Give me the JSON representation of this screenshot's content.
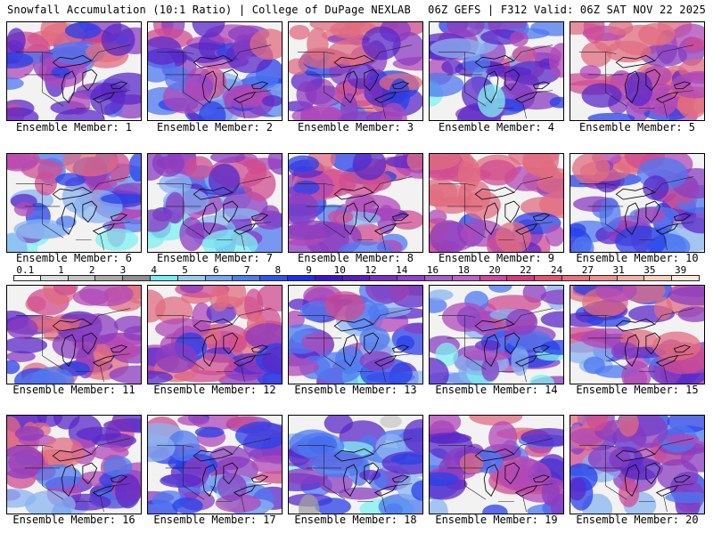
{
  "header": {
    "left": "Snowfall Accumulation (10:1 Ratio) | College of DuPage NEXLAB",
    "right": "06Z GEFS | F312 Valid: 06Z SAT NOV 22 2025"
  },
  "members": [
    {
      "label": "Ensemble Member: 1",
      "intensity": 0.55
    },
    {
      "label": "Ensemble Member: 2",
      "intensity": 0.5
    },
    {
      "label": "Ensemble Member: 3",
      "intensity": 0.7
    },
    {
      "label": "Ensemble Member: 4",
      "intensity": 0.4
    },
    {
      "label": "Ensemble Member: 5",
      "intensity": 0.85
    },
    {
      "label": "Ensemble Member: 6",
      "intensity": 0.45
    },
    {
      "label": "Ensemble Member: 7",
      "intensity": 0.45
    },
    {
      "label": "Ensemble Member: 8",
      "intensity": 0.55
    },
    {
      "label": "Ensemble Member: 9",
      "intensity": 0.8
    },
    {
      "label": "Ensemble Member: 10",
      "intensity": 0.55
    },
    {
      "label": "Ensemble Member: 11",
      "intensity": 0.8
    },
    {
      "label": "Ensemble Member: 12",
      "intensity": 0.8
    },
    {
      "label": "Ensemble Member: 13",
      "intensity": 0.45
    },
    {
      "label": "Ensemble Member: 14",
      "intensity": 0.45
    },
    {
      "label": "Ensemble Member: 15",
      "intensity": 0.6
    },
    {
      "label": "Ensemble Member: 16",
      "intensity": 0.6
    },
    {
      "label": "Ensemble Member: 17",
      "intensity": 0.45
    },
    {
      "label": "Ensemble Member: 18",
      "intensity": 0.25
    },
    {
      "label": "Ensemble Member: 19",
      "intensity": 0.55
    },
    {
      "label": "Ensemble Member: 20",
      "intensity": 0.55
    }
  ],
  "colorbar": {
    "labels": [
      "0.1",
      "1",
      "2",
      "3",
      "4",
      "5",
      "6",
      "7",
      "8",
      "9",
      "10",
      "12",
      "14",
      "16",
      "18",
      "20",
      "22",
      "24",
      "27",
      "31",
      "35",
      "39"
    ],
    "colors": [
      "#ffffff",
      "#dcdcdc",
      "#c4c4c4",
      "#a9a9a9",
      "#8f8f8f",
      "#76ecf2",
      "#9cc8ee",
      "#78a8f0",
      "#4e7ff0",
      "#2f55f0",
      "#1c2ef0",
      "#3b16c8",
      "#5a1fb8",
      "#7a2fc0",
      "#9440c8",
      "#a85ec8",
      "#c060c8",
      "#d048a0",
      "#d83a7c",
      "#e05470",
      "#e87080",
      "#f09090",
      "#f4b0a8",
      "#f8d0c0",
      "#fce8dc"
    ]
  }
}
